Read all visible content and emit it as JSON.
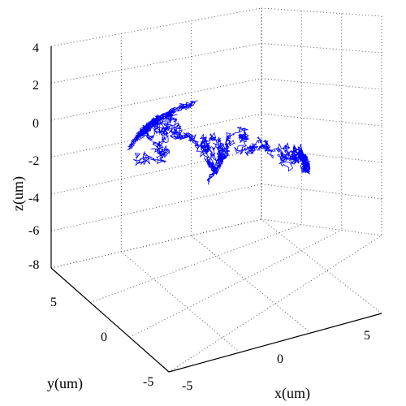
{
  "chart_data": {
    "type": "line3d",
    "title": "",
    "xlabel": "x(um)",
    "ylabel": "y(um)",
    "zlabel": "z(um)",
    "x_ticks": [
      "-5",
      "0",
      "5"
    ],
    "y_ticks": [
      "-5",
      "0",
      "5"
    ],
    "z_ticks": [
      "4",
      "2",
      "0",
      "-2",
      "-4",
      "-6",
      "-8"
    ],
    "xlim": [
      -5,
      7
    ],
    "ylim": [
      -5,
      7
    ],
    "zlim": [
      -8,
      4
    ],
    "grid": true,
    "line_color": "#0000ff",
    "trajectory": {
      "description": "3D random-walk trajectory on the surface of a sphere",
      "approx_center": [
        0,
        0,
        -3.5
      ],
      "approx_radius_um": 5
    }
  }
}
